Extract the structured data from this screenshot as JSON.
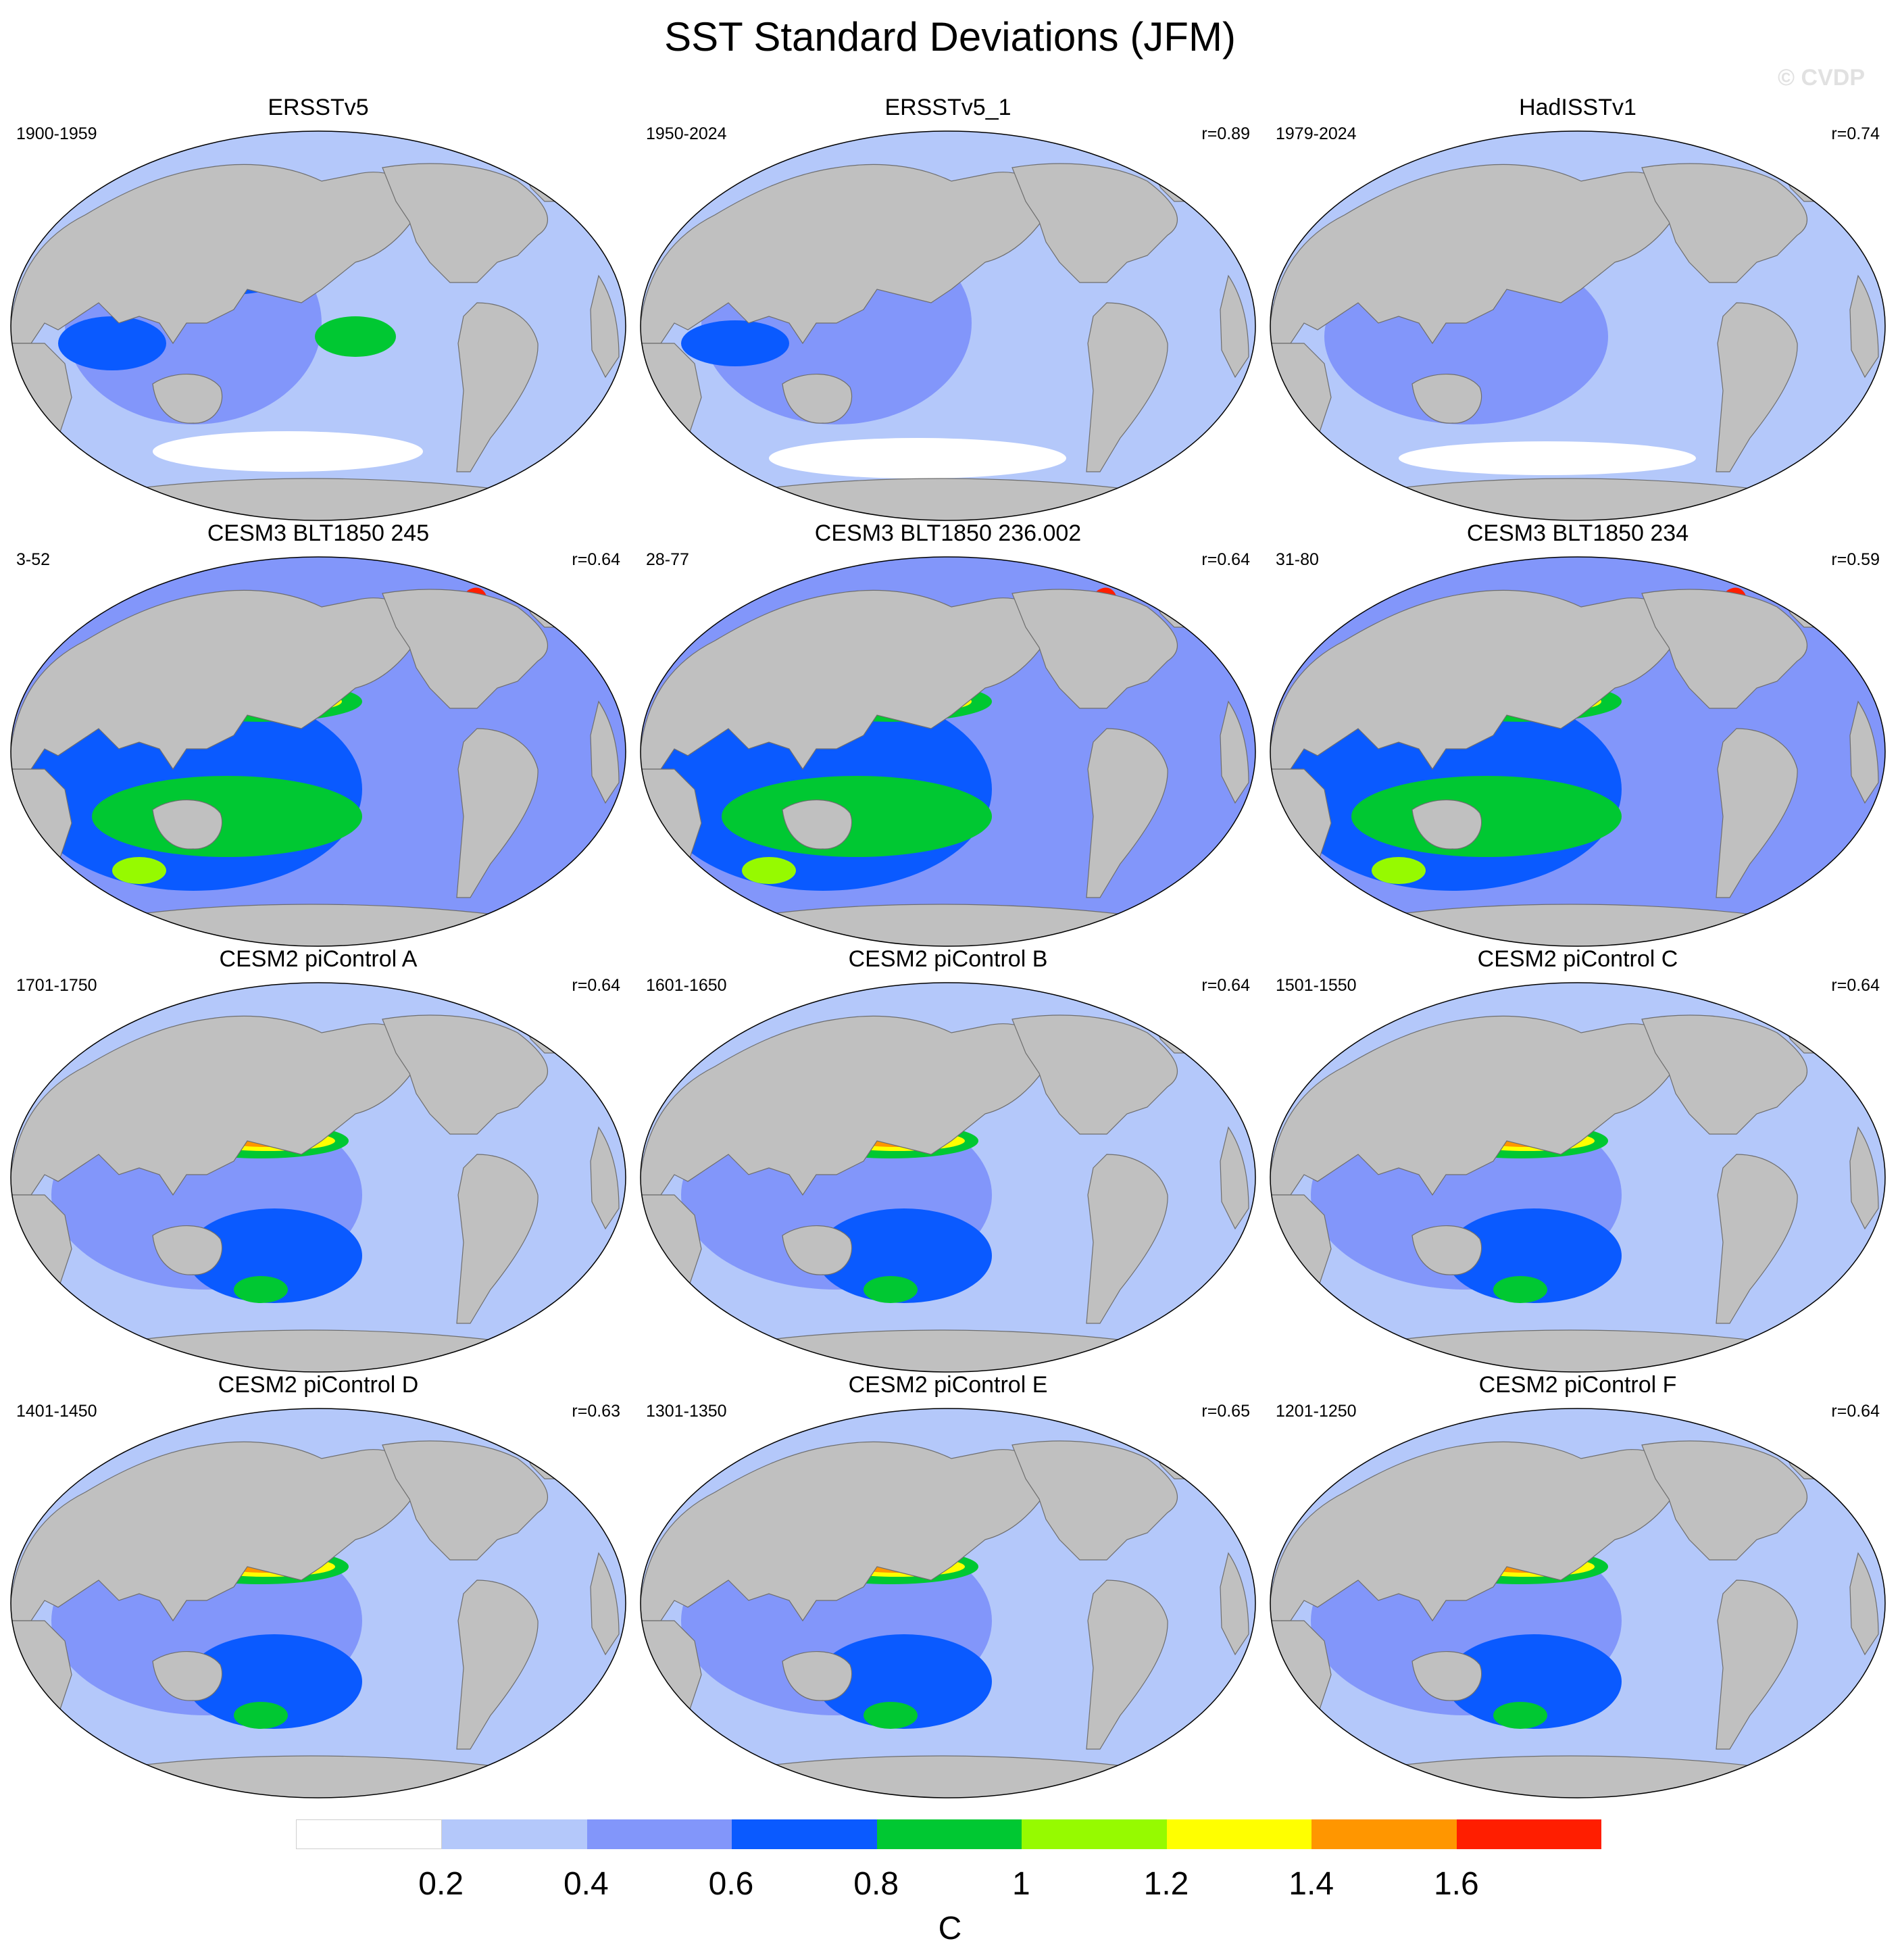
{
  "title": "SST Standard Deviations (JFM)",
  "watermark": "© CVDP",
  "panels": [
    {
      "title": "ERSSTv5",
      "years": "1900-1959",
      "corr": "",
      "profile": "obs1"
    },
    {
      "title": "ERSSTv5_1",
      "years": "1950-2024",
      "corr": "r=0.89",
      "profile": "obs2"
    },
    {
      "title": "HadISSTv1",
      "years": "1979-2024",
      "corr": "r=0.74",
      "profile": "obs3"
    },
    {
      "title": "CESM3 BLT1850 245",
      "years": "3-52",
      "corr": "r=0.64",
      "profile": "cesm3"
    },
    {
      "title": "CESM3 BLT1850 236.002",
      "years": "28-77",
      "corr": "r=0.64",
      "profile": "cesm3"
    },
    {
      "title": "CESM3 BLT1850 234",
      "years": "31-80",
      "corr": "r=0.59",
      "profile": "cesm3"
    },
    {
      "title": "CESM2 piControl A",
      "years": "1701-1750",
      "corr": "r=0.64",
      "profile": "cesm2"
    },
    {
      "title": "CESM2 piControl B",
      "years": "1601-1650",
      "corr": "r=0.64",
      "profile": "cesm2"
    },
    {
      "title": "CESM2 piControl C",
      "years": "1501-1550",
      "corr": "r=0.64",
      "profile": "cesm2"
    },
    {
      "title": "CESM2 piControl D",
      "years": "1401-1450",
      "corr": "r=0.63",
      "profile": "cesm2"
    },
    {
      "title": "CESM2 piControl E",
      "years": "1301-1350",
      "corr": "r=0.65",
      "profile": "cesm2"
    },
    {
      "title": "CESM2 piControl F",
      "years": "1201-1250",
      "corr": "r=0.64",
      "profile": "cesm2"
    }
  ],
  "colorbar": {
    "colors": [
      "#ffffff",
      "#b4c8fa",
      "#8296fa",
      "#0a5aff",
      "#00c832",
      "#96fa00",
      "#ffff00",
      "#ff9600",
      "#ff1e00"
    ],
    "tick_labels": [
      "0.2",
      "0.4",
      "0.6",
      "0.8",
      "1",
      "1.2",
      "1.4",
      "1.6"
    ],
    "units": "C"
  },
  "land_color": "#c0c0c0"
}
